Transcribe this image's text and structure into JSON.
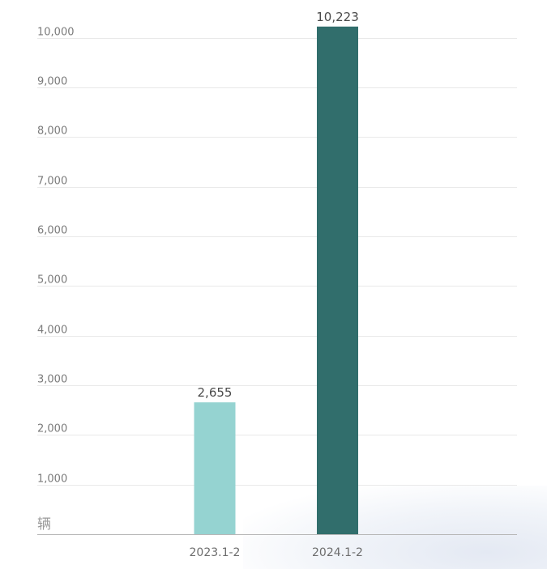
{
  "chart_data": {
    "type": "bar",
    "categories": [
      "2023.1-2",
      "2024.1-2"
    ],
    "values": [
      2655,
      10223
    ],
    "data_labels": [
      "2,655",
      "10,223"
    ],
    "unit": "辆",
    "ylim": [
      0,
      10000
    ],
    "yticks": [
      1000,
      2000,
      3000,
      4000,
      5000,
      6000,
      7000,
      8000,
      9000,
      10000
    ],
    "ytick_labels": [
      "1,000",
      "2,000",
      "3,000",
      "4,000",
      "5,000",
      "6,000",
      "7,000",
      "8,000",
      "9,000",
      "10,000"
    ],
    "grid": true,
    "colors": [
      "#95d3d1",
      "#316e6c"
    ],
    "gridline_color": "#e9e9e9",
    "baseline_color": "#b7b7b7"
  }
}
